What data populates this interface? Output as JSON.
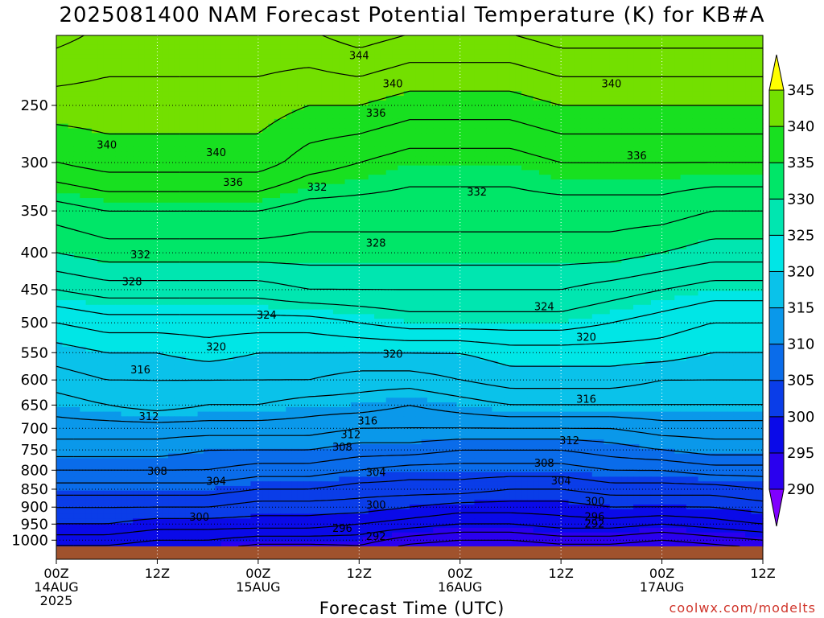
{
  "title": "2025081400 NAM Forecast Potential Temperature (K) for KB#A",
  "credit": "coolwx.com/modelts",
  "chart_data": {
    "type": "heatmap",
    "title": "2025081400 NAM Forecast Potential Temperature (K) for KB#A",
    "xlabel": "Forecast Time (UTC)",
    "ylabel": "",
    "x_hours": [
      0,
      6,
      12,
      18,
      24,
      30,
      36,
      42,
      48,
      54,
      60,
      66,
      72,
      78,
      84
    ],
    "xlim": [
      0,
      84
    ],
    "x_ticks": [
      {
        "hour": 0,
        "lines": [
          "00Z",
          "14AUG",
          "2025"
        ]
      },
      {
        "hour": 12,
        "lines": [
          "12Z"
        ]
      },
      {
        "hour": 24,
        "lines": [
          "00Z",
          "15AUG"
        ]
      },
      {
        "hour": 36,
        "lines": [
          "12Z"
        ]
      },
      {
        "hour": 48,
        "lines": [
          "00Z",
          "16AUG"
        ]
      },
      {
        "hour": 60,
        "lines": [
          "12Z"
        ]
      },
      {
        "hour": 72,
        "lines": [
          "00Z",
          "17AUG"
        ]
      },
      {
        "hour": 84,
        "lines": [
          "12Z"
        ]
      }
    ],
    "pressure_levels": [
      1000,
      950,
      900,
      850,
      800,
      750,
      700,
      650,
      600,
      550,
      500,
      450,
      400,
      350,
      300,
      250
    ],
    "ylim_hpa": [
      1020,
      200
    ],
    "y_scale": "log",
    "grid": true,
    "legend": "colorbar-right",
    "colorbar_ticks": [
      290,
      295,
      300,
      305,
      310,
      315,
      320,
      325,
      330,
      335,
      340,
      345
    ],
    "colorbar_colors": [
      "#8000ff",
      "#2a00ee",
      "#0a0ae8",
      "#0a3de8",
      "#0a6cea",
      "#0a98ea",
      "#0ac2ea",
      "#00e6e6",
      "#00e6b0",
      "#00e668",
      "#18e020",
      "#73e000",
      "#bcf000",
      "#ffff00"
    ],
    "theta_at_levels_K": {
      "1000": [
        297,
        297,
        296,
        296,
        295,
        295,
        295,
        293,
        292,
        292,
        293,
        293,
        292,
        293,
        294
      ],
      "950": [
        300,
        300,
        299,
        299,
        299,
        299,
        298,
        297,
        296,
        296,
        297,
        297,
        296,
        297,
        298
      ],
      "900": [
        302,
        302,
        302,
        302,
        301,
        301,
        301,
        300,
        299,
        299,
        299,
        300,
        300,
        300,
        301
      ],
      "850": [
        305,
        305,
        305,
        305,
        304,
        304,
        303,
        303,
        303,
        302,
        302,
        303,
        303,
        303,
        304
      ],
      "800": [
        308,
        308,
        308,
        308,
        307,
        307,
        306,
        305,
        305,
        305,
        305,
        306,
        306,
        307,
        307
      ],
      "750": [
        311,
        311,
        311,
        310,
        310,
        310,
        309,
        309,
        308,
        308,
        308,
        309,
        310,
        311,
        311
      ],
      "700": [
        313,
        313,
        313,
        313,
        313,
        313,
        312,
        312,
        312,
        312,
        312,
        312,
        313,
        313,
        313
      ],
      "650": [
        315,
        316,
        317,
        316,
        316,
        315,
        315,
        314,
        315,
        316,
        316,
        316,
        316,
        316,
        316
      ],
      "600": [
        317,
        318,
        318,
        318,
        318,
        318,
        317,
        317,
        318,
        319,
        319,
        319,
        318,
        318,
        318
      ],
      "550": [
        319,
        320,
        320,
        321,
        320,
        320,
        320,
        320,
        320,
        321,
        321,
        321,
        321,
        320,
        320
      ],
      "500": [
        322,
        323,
        323,
        323,
        323,
        323,
        324,
        325,
        325,
        325,
        325,
        324,
        323,
        322,
        322
      ],
      "450": [
        326,
        327,
        327,
        327,
        327,
        328,
        328,
        328,
        328,
        328,
        328,
        327,
        326,
        325,
        325
      ],
      "400": [
        330,
        331,
        331,
        331,
        331,
        331,
        331,
        331,
        331,
        331,
        331,
        331,
        330,
        329,
        329
      ],
      "350": [
        333,
        334,
        334,
        334,
        334,
        333,
        333,
        333,
        333,
        333,
        333,
        333,
        333,
        332,
        332
      ],
      "300": [
        338,
        339,
        339,
        339,
        339,
        337,
        336,
        335,
        335,
        335,
        336,
        336,
        336,
        336,
        336
      ],
      "250": [
        341,
        341,
        341,
        341,
        341,
        340,
        340,
        339,
        339,
        339,
        340,
        340,
        340,
        340,
        340
      ]
    },
    "contour_labels": [
      {
        "text": "344",
        "hour": 36,
        "hpa": 213
      },
      {
        "text": "340",
        "hour": 6,
        "hpa": 283
      },
      {
        "text": "340",
        "hour": 19,
        "hpa": 290
      },
      {
        "text": "340",
        "hour": 40,
        "hpa": 233
      },
      {
        "text": "340",
        "hour": 66,
        "hpa": 233
      },
      {
        "text": "336",
        "hour": 21,
        "hpa": 319
      },
      {
        "text": "336",
        "hour": 38,
        "hpa": 256
      },
      {
        "text": "336",
        "hour": 69,
        "hpa": 293
      },
      {
        "text": "332",
        "hour": 10,
        "hpa": 402
      },
      {
        "text": "332",
        "hour": 31,
        "hpa": 324
      },
      {
        "text": "332",
        "hour": 50,
        "hpa": 329
      },
      {
        "text": "328",
        "hour": 9,
        "hpa": 438
      },
      {
        "text": "328",
        "hour": 38,
        "hpa": 387
      },
      {
        "text": "324",
        "hour": 25,
        "hpa": 487
      },
      {
        "text": "324",
        "hour": 58,
        "hpa": 474
      },
      {
        "text": "320",
        "hour": 19,
        "hpa": 539
      },
      {
        "text": "320",
        "hour": 40,
        "hpa": 552
      },
      {
        "text": "320",
        "hour": 63,
        "hpa": 523
      },
      {
        "text": "316",
        "hour": 10,
        "hpa": 580
      },
      {
        "text": "316",
        "hour": 37,
        "hpa": 683
      },
      {
        "text": "316",
        "hour": 63,
        "hpa": 637
      },
      {
        "text": "312",
        "hour": 11,
        "hpa": 673
      },
      {
        "text": "312",
        "hour": 35,
        "hpa": 713
      },
      {
        "text": "312",
        "hour": 61,
        "hpa": 727
      },
      {
        "text": "308",
        "hour": 12,
        "hpa": 801
      },
      {
        "text": "308",
        "hour": 34,
        "hpa": 742
      },
      {
        "text": "308",
        "hour": 58,
        "hpa": 781
      },
      {
        "text": "304",
        "hour": 19,
        "hpa": 828
      },
      {
        "text": "304",
        "hour": 38,
        "hpa": 805
      },
      {
        "text": "304",
        "hour": 60,
        "hpa": 826
      },
      {
        "text": "300",
        "hour": 17,
        "hpa": 928
      },
      {
        "text": "300",
        "hour": 38,
        "hpa": 893
      },
      {
        "text": "300",
        "hour": 64,
        "hpa": 882
      },
      {
        "text": "296",
        "hour": 34,
        "hpa": 962
      },
      {
        "text": "296",
        "hour": 64,
        "hpa": 926
      },
      {
        "text": "292",
        "hour": 38,
        "hpa": 986
      },
      {
        "text": "292",
        "hour": 64,
        "hpa": 948
      }
    ]
  }
}
